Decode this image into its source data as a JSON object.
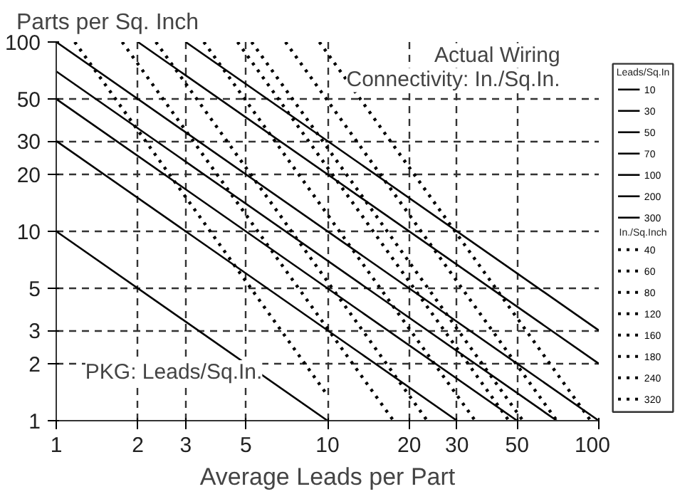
{
  "chart_data": {
    "type": "line",
    "ylabel": "Parts per Sq. Inch",
    "xlabel": "Average Leads per Part",
    "legend_title": "Leads/Sq.In",
    "annotations": [
      "Actual Wiring\nConnectivity: In./Sq.In.",
      "PKG: Leads/Sq.In.",
      "In./Sq.Inch"
    ],
    "log": "xy",
    "xlim": [
      1,
      100
    ],
    "ylim": [
      1,
      100
    ],
    "xticks": [
      1,
      2,
      3,
      5,
      10,
      20,
      30,
      50,
      100
    ],
    "yticks": [
      1,
      2,
      3,
      5,
      10,
      20,
      30,
      50,
      100
    ],
    "grid": true,
    "legend": "right",
    "marker": "none",
    "series": [
      {
        "name": "10",
        "color": "#000000",
        "line_style": "solid",
        "x": [
          1,
          10
        ],
        "values": [
          10,
          1
        ]
      },
      {
        "name": "30",
        "color": "#000000",
        "line_style": "solid",
        "x": [
          1,
          30
        ],
        "values": [
          30,
          1
        ]
      },
      {
        "name": "50",
        "color": "#000000",
        "line_style": "solid",
        "x": [
          1,
          50
        ],
        "values": [
          50,
          1
        ]
      },
      {
        "name": "70",
        "color": "#000000",
        "line_style": "solid",
        "x": [
          1,
          70
        ],
        "values": [
          70,
          1
        ]
      },
      {
        "name": "100",
        "color": "#000000",
        "line_style": "solid",
        "x": [
          1,
          100
        ],
        "values": [
          100,
          1
        ]
      },
      {
        "name": "200",
        "color": "#000000",
        "line_style": "solid",
        "x": [
          2,
          100
        ],
        "values": [
          100,
          2
        ]
      },
      {
        "name": "300",
        "color": "#000000",
        "line_style": "solid",
        "x": [
          3,
          100
        ],
        "values": [
          100,
          3
        ]
      },
      {
        "name": "40",
        "color": "#000000",
        "line_style": "dotted",
        "x": [
          1.17,
          10
        ],
        "values": [
          100,
          1.36
        ]
      },
      {
        "name": "60",
        "color": "#000000",
        "line_style": "dotted",
        "x": [
          1.75,
          17.5
        ],
        "values": [
          100,
          1
        ]
      },
      {
        "name": "80",
        "color": "#000000",
        "line_style": "dotted",
        "x": [
          2.33,
          23.3
        ],
        "values": [
          100,
          1
        ]
      },
      {
        "name": "120",
        "color": "#000000",
        "line_style": "dotted",
        "x": [
          3.5,
          35
        ],
        "values": [
          100,
          1
        ]
      },
      {
        "name": "160",
        "color": "#000000",
        "line_style": "dotted",
        "x": [
          4.66,
          46.6
        ],
        "values": [
          100,
          1
        ]
      },
      {
        "name": "180",
        "color": "#000000",
        "line_style": "dotted",
        "x": [
          5.25,
          52.5
        ],
        "values": [
          100,
          1
        ]
      },
      {
        "name": "240",
        "color": "#000000",
        "line_style": "dotted",
        "x": [
          7,
          70
        ],
        "values": [
          100,
          1
        ]
      },
      {
        "name": "320",
        "color": "#000000",
        "line_style": "dotted",
        "x": [
          9.33,
          93.3
        ],
        "values": [
          100,
          1
        ]
      }
    ]
  }
}
